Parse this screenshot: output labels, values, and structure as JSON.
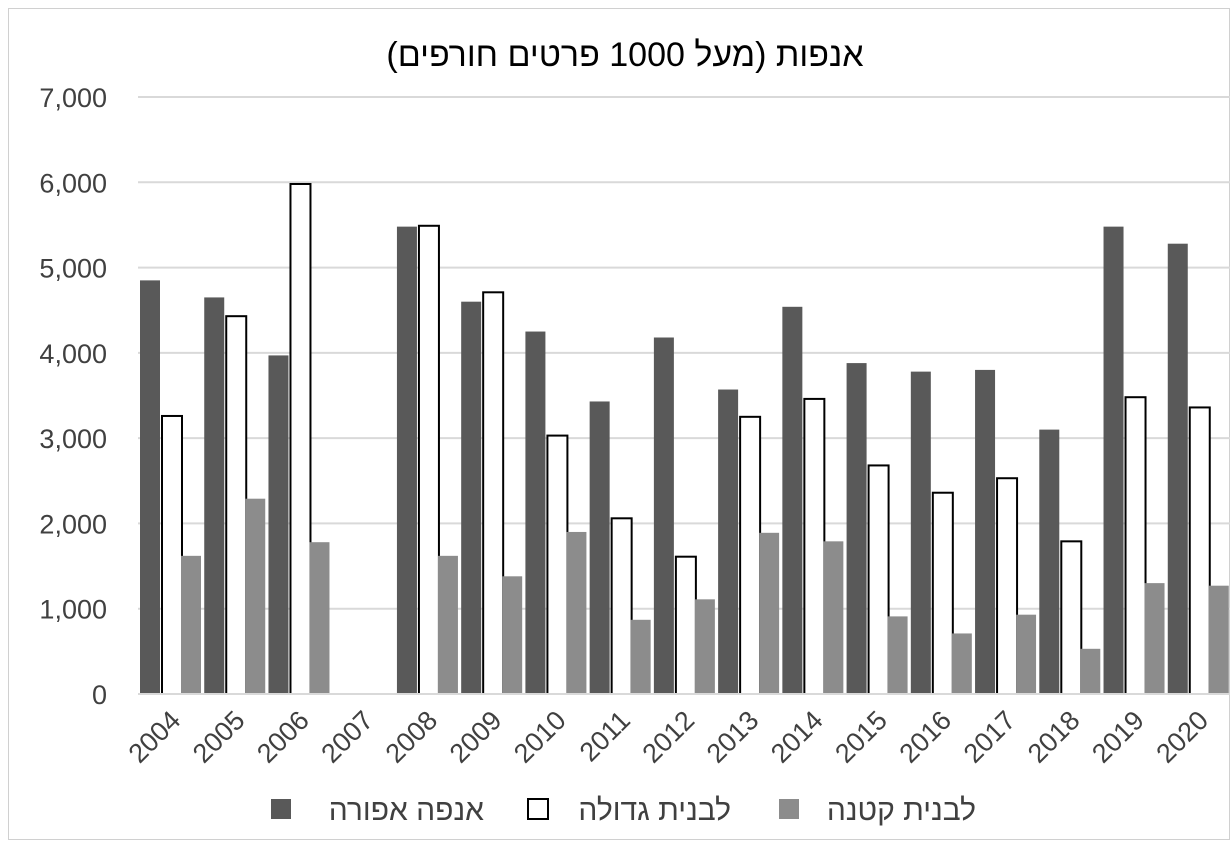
{
  "chart_data": {
    "type": "bar",
    "title": "אנפות (מעל 1000 פרטים חורפים)",
    "xlabel": "",
    "ylabel": "",
    "ylim": [
      0,
      7000
    ],
    "yticks": [
      0,
      1000,
      2000,
      3000,
      4000,
      5000,
      6000,
      7000
    ],
    "ytick_labels": [
      "0",
      "1,000",
      "2,000",
      "3,000",
      "4,000",
      "5,000",
      "6,000",
      "7,000"
    ],
    "grid": true,
    "legend_position": "bottom",
    "categories": [
      "2004",
      "2005",
      "2006",
      "2007",
      "2008",
      "2009",
      "2010",
      "2011",
      "2012",
      "2013",
      "2014",
      "2015",
      "2016",
      "2017",
      "2018",
      "2019",
      "2020"
    ],
    "series": [
      {
        "name": "אנפה אפורה",
        "color": "#595959",
        "stroke": "#595959",
        "values": [
          4850,
          4650,
          3970,
          null,
          5480,
          4600,
          4250,
          3430,
          4180,
          3570,
          4540,
          3880,
          3780,
          3800,
          3100,
          5480,
          5280
        ]
      },
      {
        "name": "לבנית גדולה",
        "color": "#ffffff",
        "stroke": "#000000",
        "values": [
          3260,
          4430,
          5980,
          null,
          5490,
          4710,
          3030,
          2060,
          1610,
          3250,
          3460,
          2680,
          2360,
          2530,
          1790,
          3480,
          3360
        ]
      },
      {
        "name": "לבנית קטנה",
        "color": "#8c8c8c",
        "stroke": "#8c8c8c",
        "values": [
          1620,
          2290,
          1780,
          null,
          1620,
          1380,
          1900,
          870,
          1110,
          1890,
          1790,
          910,
          710,
          930,
          530,
          1300,
          1270
        ]
      }
    ]
  }
}
